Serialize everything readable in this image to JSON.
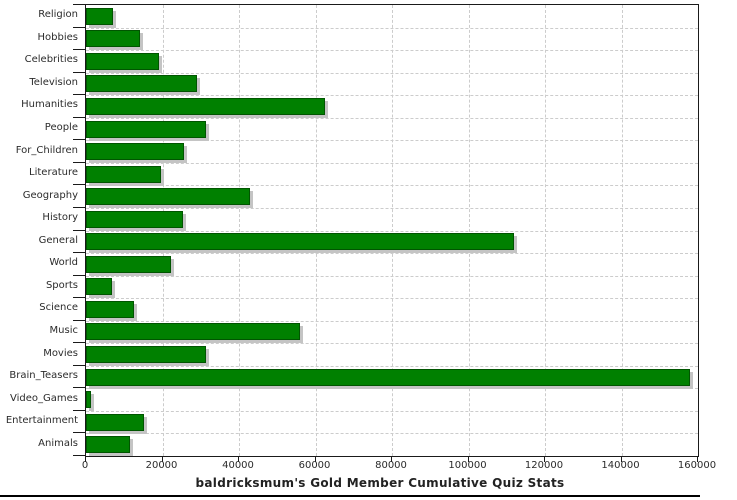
{
  "chart_data": {
    "type": "bar",
    "orientation": "horizontal",
    "title": "baldricksmum's Gold Member Cumulative Quiz Stats",
    "categories": [
      "Religion",
      "Hobbies",
      "Celebrities",
      "Television",
      "Humanities",
      "People",
      "For_Children",
      "Literature",
      "Geography",
      "History",
      "General",
      "World",
      "Sports",
      "Science",
      "Music",
      "Movies",
      "Brain_Teasers",
      "Video_Games",
      "Entertainment",
      "Animals"
    ],
    "values": [
      7000,
      14000,
      19000,
      29000,
      62500,
      31500,
      25500,
      19600,
      43000,
      25400,
      112000,
      22200,
      6700,
      12500,
      56000,
      31500,
      158000,
      1300,
      15200,
      11500
    ],
    "xlabel": "",
    "ylabel": "",
    "xlim": [
      0,
      160000
    ],
    "x_ticks": [
      0,
      20000,
      40000,
      60000,
      80000,
      100000,
      120000,
      140000,
      160000
    ],
    "x_tick_labels": [
      "0",
      "20000",
      "40000",
      "60000",
      "80000",
      "100000",
      "120000",
      "140000",
      "160000"
    ],
    "grid": "dashed",
    "legend": "none",
    "colors": {
      "bar_fill": "#008000",
      "bar_border": "#005500",
      "bar_shadow": "#c4c4c4",
      "grid_color": "#cccccc",
      "axis_color": "#1a1a1a",
      "text_color": "#2b2b2b"
    }
  }
}
